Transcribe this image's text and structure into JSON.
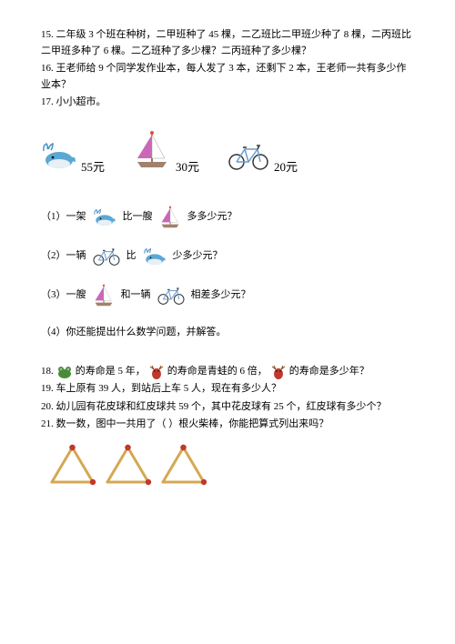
{
  "q15": "15. 二年级 3 个班在种树，二甲班种了 45 棵，二乙班比二甲班少种了 8 棵，二丙班比二甲班多种了 6 棵。二乙班种了多少棵？二丙班种了多少棵？",
  "q16": "16. 王老师给 9 个同学发作业本，每人发了 3 本，还剩下 2 本，王老师一共有多少作业本？",
  "q17": "17. 小小超市。",
  "prices": {
    "whale": "55元",
    "sailboat": "30元",
    "bicycle": "20元"
  },
  "q17_1_a": "（1）一架",
  "q17_1_b": "比一艘",
  "q17_1_c": "多多少元？",
  "q17_2_a": "（2）一辆",
  "q17_2_b": "比",
  "q17_2_c": "少多少元？",
  "q17_3_a": "（3）一艘",
  "q17_3_b": "和一辆",
  "q17_3_c": "相差多少元？",
  "q17_4": "（4）你还能提出什么数学问题，并解答。",
  "q18_a": "18. ",
  "q18_b": "的寿命是 5 年，",
  "q18_c": "的寿命是青蛙的 6 倍，",
  "q18_d": "的寿命是多少年？",
  "q19": "19. 车上原有 39 人，到站后上车 5 人，现在有多少人？",
  "q20": "20. 幼儿园有花皮球和红皮球共 59 个，其中花皮球有 25 个，红皮球有多少个？",
  "q21": "21. 数一数，图中一共用了（    ）根火柴棒，你能把算式列出来吗？",
  "colors": {
    "whale_body": "#5ba8d4",
    "whale_splash": "#4a90c2",
    "sail_left": "#c968b8",
    "sail_right": "#ffffff",
    "sail_mast": "#8b4513",
    "boat_hull": "#a0826d",
    "bike_frame": "#6b9bd1",
    "bike_wheel": "#333333",
    "frog": "#4a8b3a",
    "deer": "#c0392b",
    "match_stick": "#d4a853",
    "match_head": "#c0392b"
  },
  "match_triangles": 3
}
